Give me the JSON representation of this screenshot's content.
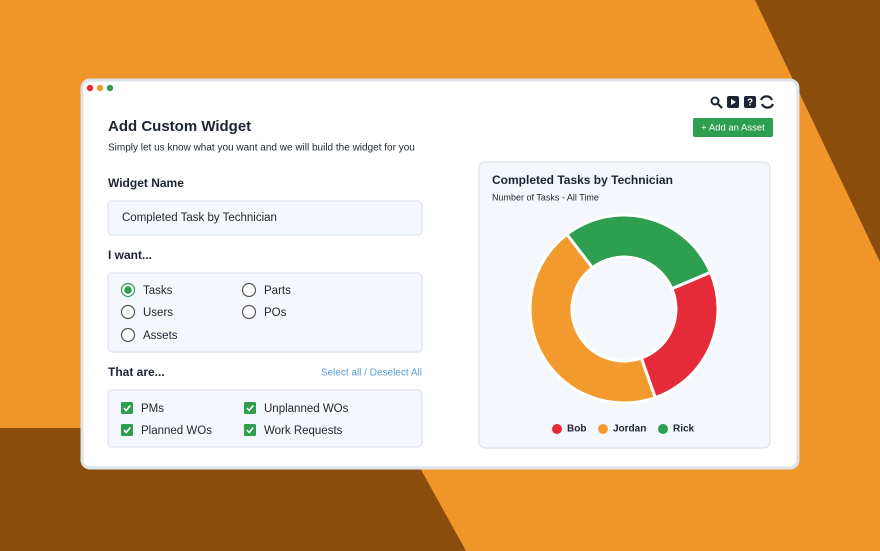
{
  "window": {
    "action_button": "+ Add an Asset"
  },
  "header": {
    "title": "Add Custom Widget",
    "subtitle": "Simply let us know what you want and we will build the widget for you"
  },
  "form": {
    "name_label": "Widget Name",
    "name_value": "Completed Task by Technician",
    "want_label": "I want...",
    "want_options": [
      "Tasks",
      "Parts",
      "Users",
      "POs",
      "Assets"
    ],
    "want_selected": 0,
    "filter_label": "That are...",
    "filter_action": "Select all / Deselect All",
    "filters": [
      "PMs",
      "Unplanned WOs",
      "Planned WOs",
      "Work Requests"
    ]
  },
  "chart_data": {
    "type": "donut",
    "title": "Completed Tasks by Technician",
    "subtitle": "Number of Tasks - All Time",
    "categories": [
      "Bob",
      "Jordan",
      "Rick"
    ],
    "values": [
      26,
      45,
      29
    ],
    "colors": [
      "#e52a3a",
      "#f29a2e",
      "#2e9e4f"
    ]
  }
}
